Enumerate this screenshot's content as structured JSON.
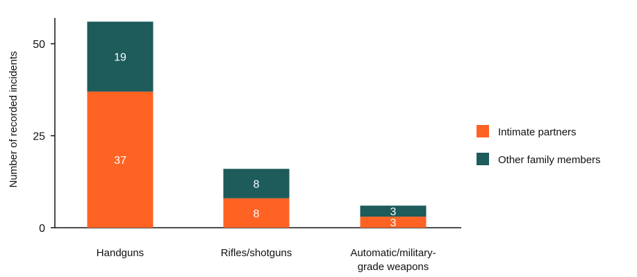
{
  "chart_data": {
    "type": "bar",
    "stacked": true,
    "title": "",
    "xlabel": "",
    "ylabel": "Number of recorded incidents",
    "ylim": [
      0,
      57
    ],
    "yticks": [
      0,
      25,
      50
    ],
    "categories": [
      "Handguns",
      "Rifles/shotguns",
      "Automatic/military-grade weapons"
    ],
    "series": [
      {
        "name": "Intimate partners",
        "values": [
          37,
          8,
          3
        ],
        "color": "#ff6324"
      },
      {
        "name": "Other family members",
        "values": [
          19,
          8,
          3
        ],
        "color": "#1e5b5b"
      }
    ],
    "legend_position": "right",
    "grid": false
  }
}
